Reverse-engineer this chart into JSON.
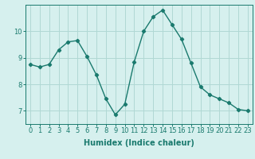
{
  "x": [
    0,
    1,
    2,
    3,
    4,
    5,
    6,
    7,
    8,
    9,
    10,
    11,
    12,
    13,
    14,
    15,
    16,
    17,
    18,
    19,
    20,
    21,
    22,
    23
  ],
  "y": [
    8.75,
    8.65,
    8.75,
    9.3,
    9.6,
    9.65,
    9.05,
    8.35,
    7.45,
    6.85,
    7.25,
    8.85,
    10.0,
    10.55,
    10.8,
    10.25,
    9.7,
    8.8,
    7.9,
    7.6,
    7.45,
    7.3,
    7.05,
    7.0
  ],
  "line_color": "#1a7a6e",
  "bg_color": "#d6f0ee",
  "grid_color": "#b0d8d4",
  "xlabel": "Humidex (Indice chaleur)",
  "xlim": [
    -0.5,
    23.5
  ],
  "ylim": [
    6.5,
    11.0
  ],
  "yticks": [
    7,
    8,
    9,
    10
  ],
  "xticks": [
    0,
    1,
    2,
    3,
    4,
    5,
    6,
    7,
    8,
    9,
    10,
    11,
    12,
    13,
    14,
    15,
    16,
    17,
    18,
    19,
    20,
    21,
    22,
    23
  ],
  "marker": "D",
  "markersize": 2.2,
  "linewidth": 1.0,
  "tick_fontsize": 6,
  "label_fontsize": 7
}
